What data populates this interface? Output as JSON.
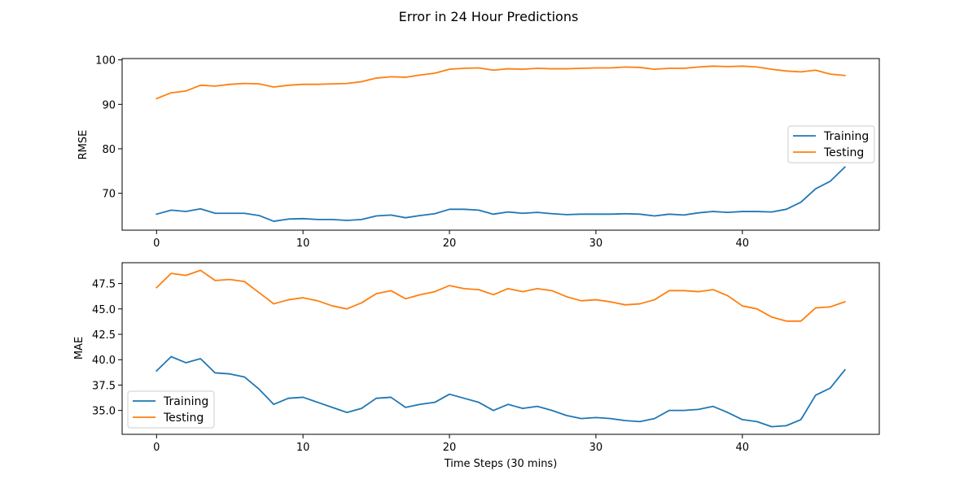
{
  "figure": {
    "title": "Error in 24 Hour Predictions",
    "colors": {
      "training": "#1f77b4",
      "testing": "#ff7f0e"
    }
  },
  "chart_data": [
    {
      "type": "line",
      "title": "",
      "xlabel": "",
      "ylabel": "RMSE",
      "xlim": [
        -2.35,
        49.35
      ],
      "ylim": [
        61.7,
        100.3
      ],
      "xticks": [
        0,
        10,
        20,
        30,
        40
      ],
      "xtick_labels": [
        "0",
        "10",
        "20",
        "30",
        "40"
      ],
      "yticks": [
        70,
        80,
        90,
        100
      ],
      "ytick_labels": [
        "70",
        "80",
        "90",
        "100"
      ],
      "legend": "center-right",
      "grid": false,
      "x": [
        0,
        1,
        2,
        3,
        4,
        5,
        6,
        7,
        8,
        9,
        10,
        11,
        12,
        13,
        14,
        15,
        16,
        17,
        18,
        19,
        20,
        21,
        22,
        23,
        24,
        25,
        26,
        27,
        28,
        29,
        30,
        31,
        32,
        33,
        34,
        35,
        36,
        37,
        38,
        39,
        40,
        41,
        42,
        43,
        44,
        45,
        46,
        47
      ],
      "series": [
        {
          "name": "Training",
          "color": "#1f77b4",
          "values": [
            65.3,
            66.2,
            65.9,
            66.5,
            65.5,
            65.5,
            65.5,
            65.0,
            63.7,
            64.2,
            64.3,
            64.1,
            64.1,
            63.9,
            64.1,
            64.9,
            65.1,
            64.5,
            65.0,
            65.4,
            66.4,
            66.4,
            66.2,
            65.3,
            65.8,
            65.5,
            65.7,
            65.4,
            65.2,
            65.3,
            65.3,
            65.3,
            65.4,
            65.3,
            64.9,
            65.3,
            65.1,
            65.6,
            65.9,
            65.7,
            65.9,
            65.9,
            65.8,
            66.4,
            68.0,
            71.0,
            72.7,
            75.9
          ]
        },
        {
          "name": "Testing",
          "color": "#ff7f0e",
          "values": [
            91.3,
            92.6,
            93.0,
            94.3,
            94.1,
            94.5,
            94.7,
            94.6,
            93.9,
            94.3,
            94.5,
            94.5,
            94.6,
            94.7,
            95.1,
            95.9,
            96.2,
            96.1,
            96.6,
            97.0,
            97.9,
            98.1,
            98.2,
            97.7,
            98.0,
            97.9,
            98.1,
            98.0,
            98.0,
            98.1,
            98.2,
            98.2,
            98.4,
            98.3,
            97.9,
            98.1,
            98.1,
            98.4,
            98.6,
            98.5,
            98.6,
            98.4,
            97.9,
            97.5,
            97.3,
            97.7,
            96.8,
            96.5
          ]
        }
      ]
    },
    {
      "type": "line",
      "title": "",
      "xlabel": "Time Steps (30 mins)",
      "ylabel": "MAE",
      "xlim": [
        -2.35,
        49.35
      ],
      "ylim": [
        32.65,
        49.55
      ],
      "xticks": [
        0,
        10,
        20,
        30,
        40
      ],
      "xtick_labels": [
        "0",
        "10",
        "20",
        "30",
        "40"
      ],
      "yticks": [
        35.0,
        37.5,
        40.0,
        42.5,
        45.0,
        47.5
      ],
      "ytick_labels": [
        "35.0",
        "37.5",
        "40.0",
        "42.5",
        "45.0",
        "47.5"
      ],
      "legend": "lower-left",
      "grid": false,
      "x": [
        0,
        1,
        2,
        3,
        4,
        5,
        6,
        7,
        8,
        9,
        10,
        11,
        12,
        13,
        14,
        15,
        16,
        17,
        18,
        19,
        20,
        21,
        22,
        23,
        24,
        25,
        26,
        27,
        28,
        29,
        30,
        31,
        32,
        33,
        34,
        35,
        36,
        37,
        38,
        39,
        40,
        41,
        42,
        43,
        44,
        45,
        46,
        47
      ],
      "series": [
        {
          "name": "Training",
          "color": "#1f77b4",
          "values": [
            38.9,
            40.3,
            39.7,
            40.1,
            38.7,
            38.6,
            38.3,
            37.1,
            35.6,
            36.2,
            36.3,
            35.8,
            35.3,
            34.8,
            35.2,
            36.2,
            36.3,
            35.3,
            35.6,
            35.8,
            36.6,
            36.2,
            35.8,
            35.0,
            35.6,
            35.2,
            35.4,
            35.0,
            34.5,
            34.2,
            34.3,
            34.2,
            34.0,
            33.9,
            34.2,
            35.0,
            35.0,
            35.1,
            35.4,
            34.8,
            34.1,
            33.9,
            33.4,
            33.5,
            34.1,
            36.5,
            37.2,
            39.0
          ]
        },
        {
          "name": "Testing",
          "color": "#ff7f0e",
          "values": [
            47.1,
            48.5,
            48.3,
            48.8,
            47.8,
            47.9,
            47.7,
            46.6,
            45.5,
            45.9,
            46.1,
            45.8,
            45.3,
            45.0,
            45.6,
            46.5,
            46.8,
            46.0,
            46.4,
            46.7,
            47.3,
            47.0,
            46.9,
            46.4,
            47.0,
            46.7,
            47.0,
            46.8,
            46.2,
            45.8,
            45.9,
            45.7,
            45.4,
            45.5,
            45.9,
            46.8,
            46.8,
            46.7,
            46.9,
            46.3,
            45.3,
            45.0,
            44.2,
            43.8,
            43.8,
            45.1,
            45.2,
            45.7
          ]
        }
      ]
    }
  ]
}
